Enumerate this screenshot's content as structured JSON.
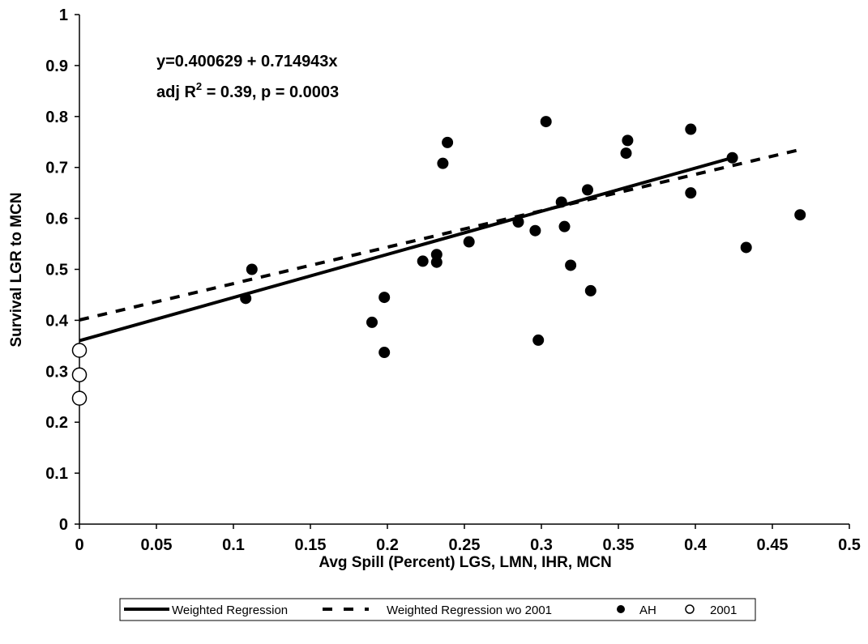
{
  "chart_data": {
    "type": "scatter",
    "title": "",
    "xlabel": "Avg Spill (Percent) LGS, LMN, IHR, MCN",
    "ylabel": "Survival LGR to MCN",
    "xlim": [
      0,
      0.5
    ],
    "ylim": [
      0,
      1
    ],
    "x_ticks": [
      "0",
      "0.05",
      "0.1",
      "0.15",
      "0.2",
      "0.25",
      "0.3",
      "0.35",
      "0.4",
      "0.45",
      "0.5"
    ],
    "y_ticks": [
      "0",
      "0.1",
      "0.2",
      "0.3",
      "0.4",
      "0.5",
      "0.6",
      "0.7",
      "0.8",
      "0.9",
      "1"
    ],
    "grid": false,
    "legend_position": "bottom",
    "annotation": {
      "equation": "y=0.400629 + 0.714943x",
      "stats_prefix": "adj R",
      "stats_sup": "2",
      "stats_suffix": " = 0.39, p = 0.0003"
    },
    "series": [
      {
        "name": "Weighted Regression",
        "kind": "line",
        "style": "solid",
        "color": "#000000",
        "x": [
          0,
          0.424
        ],
        "y": [
          0.36,
          0.719
        ]
      },
      {
        "name": "Weighted Regression wo 2001",
        "kind": "line",
        "style": "dashed",
        "color": "#000000",
        "x": [
          0,
          0.468
        ],
        "y": [
          0.400629,
          0.735
        ]
      },
      {
        "name": "AH",
        "kind": "scatter",
        "marker": "filled",
        "color": "#000000",
        "x": [
          0.108,
          0.112,
          0.19,
          0.198,
          0.198,
          0.223,
          0.232,
          0.232,
          0.236,
          0.239,
          0.253,
          0.285,
          0.296,
          0.298,
          0.303,
          0.313,
          0.315,
          0.319,
          0.33,
          0.332,
          0.355,
          0.356,
          0.397,
          0.397,
          0.424,
          0.433,
          0.468
        ],
        "y": [
          0.443,
          0.5,
          0.396,
          0.445,
          0.337,
          0.516,
          0.529,
          0.514,
          0.708,
          0.749,
          0.554,
          0.593,
          0.576,
          0.361,
          0.79,
          0.632,
          0.584,
          0.508,
          0.656,
          0.458,
          0.728,
          0.753,
          0.775,
          0.65,
          0.719,
          0.543,
          0.607
        ]
      },
      {
        "name": "2001",
        "kind": "scatter",
        "marker": "open",
        "color": "#000000",
        "x": [
          0,
          0,
          0
        ],
        "y": [
          0.341,
          0.293,
          0.247
        ]
      }
    ]
  }
}
